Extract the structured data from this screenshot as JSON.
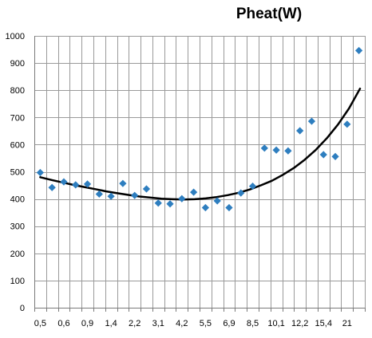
{
  "chart_data": {
    "type": "scatter",
    "title": "Pheat(W)",
    "xlabel": "",
    "ylabel": "",
    "ylim": [
      0,
      1000
    ],
    "y_ticks": [
      "0",
      "100",
      "200",
      "300",
      "400",
      "500",
      "600",
      "700",
      "800",
      "900",
      "1000"
    ],
    "x_tick_labels": [
      "0,5",
      "0,6",
      "0,9",
      "1,4",
      "2,2",
      "3,1",
      "4,2",
      "5,5",
      "6,9",
      "8,5",
      "10,1",
      "12,2",
      "15,4",
      "21"
    ],
    "grid": true,
    "legend": "none",
    "series": [
      {
        "type": "scatter",
        "marker": "diamond",
        "color": "#2e7ebf",
        "values": [
          497,
          442,
          463,
          452,
          455,
          418,
          410,
          457,
          413,
          437,
          385,
          382,
          401,
          425,
          368,
          393,
          368,
          422,
          447,
          587,
          580,
          577,
          651,
          686,
          563,
          556,
          675,
          946
        ]
      },
      {
        "type": "line",
        "style": "trendline",
        "color": "#000000",
        "values": [
          480,
          470,
          461,
          452,
          444,
          436,
          428,
          421,
          415,
          409,
          405,
          401,
          399,
          398,
          399,
          402,
          407,
          414,
          423,
          435,
          450,
          467,
          489,
          514,
          545,
          581,
          624,
          674,
          733,
          806
        ]
      }
    ]
  }
}
